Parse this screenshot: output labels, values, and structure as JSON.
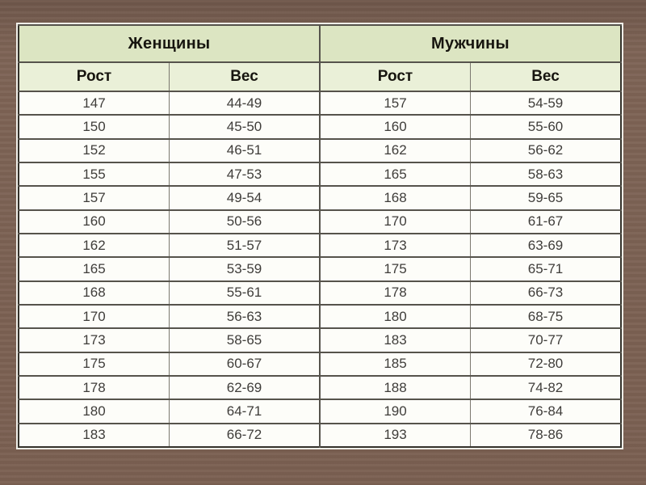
{
  "slide": {
    "background_color": "#7a5f51"
  },
  "table": {
    "groups": [
      {
        "label": "Женщины"
      },
      {
        "label": "Мужчины"
      }
    ],
    "columns": [
      "Рост",
      "Вес",
      "Рост",
      "Вес"
    ],
    "rows": [
      [
        "147",
        "44-49",
        "157",
        "54-59"
      ],
      [
        "150",
        "45-50",
        "160",
        "55-60"
      ],
      [
        "152",
        "46-51",
        "162",
        "56-62"
      ],
      [
        "155",
        "47-53",
        "165",
        "58-63"
      ],
      [
        "157",
        "49-54",
        "168",
        "59-65"
      ],
      [
        "160",
        "50-56",
        "170",
        "61-67"
      ],
      [
        "162",
        "51-57",
        "173",
        "63-69"
      ],
      [
        "165",
        "53-59",
        "175",
        "65-71"
      ],
      [
        "168",
        "55-61",
        "178",
        "66-73"
      ],
      [
        "170",
        "56-63",
        "180",
        "68-75"
      ],
      [
        "173",
        "58-65",
        "183",
        "70-77"
      ],
      [
        "175",
        "60-67",
        "185",
        "72-80"
      ],
      [
        "178",
        "62-69",
        "188",
        "74-82"
      ],
      [
        "180",
        "64-71",
        "190",
        "76-84"
      ],
      [
        "183",
        "66-72",
        "193",
        "78-86"
      ]
    ],
    "colors": {
      "group_header_bg": "#dce5c2",
      "col_header_bg": "#eaf0d8",
      "cell_bg": "#fdfdf9",
      "outer_frame": "#efeee8",
      "border_dark": "#35332c",
      "grid_line": "#56534c",
      "grid_line_light": "#7b786f",
      "header_text": "#17150f",
      "cell_text": "#3f3d3a"
    }
  }
}
